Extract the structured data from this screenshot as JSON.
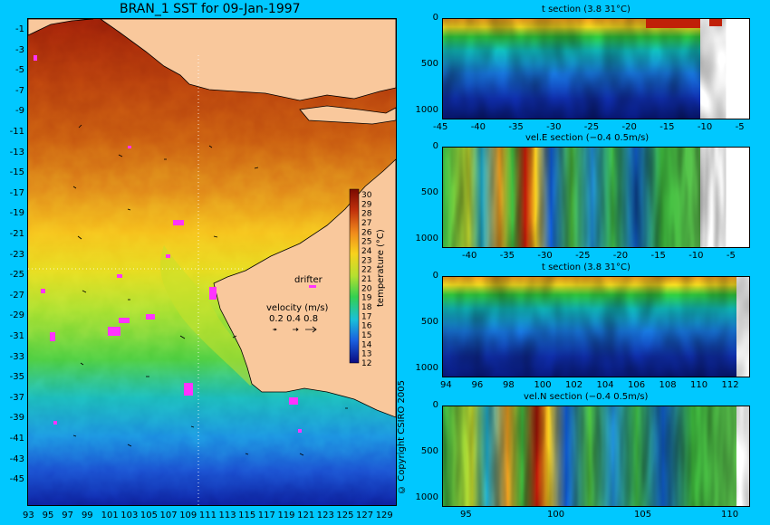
{
  "map": {
    "title": "BRAN_1 SST for 09-Jan-1997",
    "lon_ticks": [
      "93",
      "95",
      "97",
      "99",
      "101",
      "103",
      "105",
      "107",
      "109",
      "111",
      "113",
      "115",
      "117",
      "119",
      "121",
      "123",
      "125",
      "127",
      "129"
    ],
    "lat_ticks": [
      "-1",
      "-3",
      "-5",
      "-7",
      "-9",
      "-11",
      "-13",
      "-15",
      "-17",
      "-19",
      "-21",
      "-23",
      "-25",
      "-27",
      "-29",
      "-31",
      "-33",
      "-35",
      "-37",
      "-39",
      "-41",
      "-43",
      "-45"
    ],
    "colorbar": {
      "label": "temperature (°C)",
      "ticks": [
        "30",
        "29",
        "28",
        "27",
        "26",
        "25",
        "24",
        "23",
        "22",
        "21",
        "20",
        "19",
        "18",
        "17",
        "16",
        "15",
        "14",
        "13",
        "12"
      ]
    },
    "drifter_label": "drifter",
    "velocity": {
      "label": "velocity (m/s)",
      "scale": "0.2 0.4 0.8"
    },
    "copyright": "© Copyright CSIRO 2005",
    "colors": {
      "land": "#f9c89c",
      "background": "#00c8ff",
      "drifter": "#ff33ff"
    }
  },
  "panels": [
    {
      "title": "t section (3.8      31°C)",
      "y_ticks": [
        "0",
        "500",
        "1000"
      ],
      "x_ticks": [
        "-45",
        "-40",
        "-35",
        "-30",
        "-25",
        "-20",
        "-15",
        "-10",
        "-5"
      ]
    },
    {
      "title": "vel.E section (−0.4      0.5m/s)",
      "y_ticks": [
        "0",
        "500",
        "1000"
      ],
      "x_ticks": [
        "-40",
        "-35",
        "-30",
        "-25",
        "-20",
        "-15",
        "-10",
        "-5"
      ]
    },
    {
      "title": "t section (3.8      31°C)",
      "y_ticks": [
        "0",
        "500",
        "1000"
      ],
      "x_ticks": [
        "94",
        "96",
        "98",
        "100",
        "102",
        "104",
        "106",
        "108",
        "110",
        "112"
      ]
    },
    {
      "title": "vel.N section (−0.4      0.5m/s)",
      "y_ticks": [
        "0",
        "500",
        "1000"
      ],
      "x_ticks": [
        "95",
        "100",
        "105",
        "110"
      ]
    }
  ]
}
